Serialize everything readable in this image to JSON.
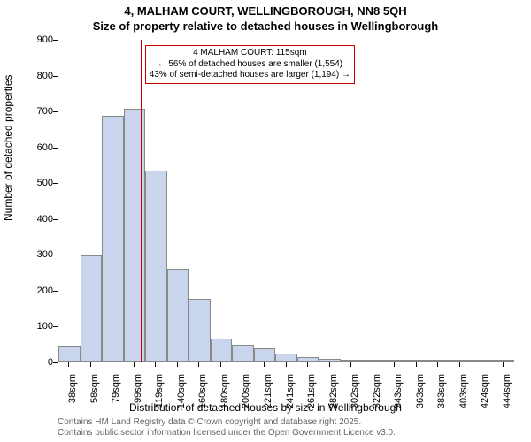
{
  "title": "4, MALHAM COURT, WELLINGBOROUGH, NN8 5QH",
  "subtitle": "Size of property relative to detached houses in Wellingborough",
  "ylabel": "Number of detached properties",
  "xlabel": "Distribution of detached houses by size in Wellingborough",
  "footer_line1": "Contains HM Land Registry data © Crown copyright and database right 2025.",
  "footer_line2": "Contains public sector information licensed under the Open Government Licence v3.0.",
  "annotation": {
    "line1": "4 MALHAM COURT: 115sqm",
    "line2": "← 56% of detached houses are smaller (1,554)",
    "line3": "43% of semi-detached houses are larger (1,194) →"
  },
  "chart": {
    "type": "histogram",
    "background_color": "#ffffff",
    "bar_fill": "#c9d5ec",
    "bar_border": "#888888",
    "marker_color": "#d00000",
    "annotation_border": "#cc0000",
    "title_fontsize": 13,
    "label_fontsize": 12,
    "tick_fontsize": 11,
    "annotation_fontsize": 10,
    "footer_fontsize": 10,
    "footer_color": "#666666",
    "ylim": [
      0,
      900
    ],
    "ytick_step": 100,
    "yticks": [
      0,
      100,
      200,
      300,
      400,
      500,
      600,
      700,
      800,
      900
    ],
    "x_tick_labels": [
      "38sqm",
      "58sqm",
      "79sqm",
      "99sqm",
      "119sqm",
      "140sqm",
      "160sqm",
      "180sqm",
      "200sqm",
      "221sqm",
      "241sqm",
      "261sqm",
      "282sqm",
      "302sqm",
      "322sqm",
      "343sqm",
      "363sqm",
      "383sqm",
      "403sqm",
      "424sqm",
      "444sqm"
    ],
    "values": [
      45,
      295,
      685,
      705,
      532,
      260,
      175,
      65,
      48,
      38,
      22,
      12,
      8,
      6,
      4,
      6,
      4,
      3,
      3,
      6,
      2
    ],
    "marker_bin_index": 3,
    "marker_position_in_bin": 0.78
  }
}
